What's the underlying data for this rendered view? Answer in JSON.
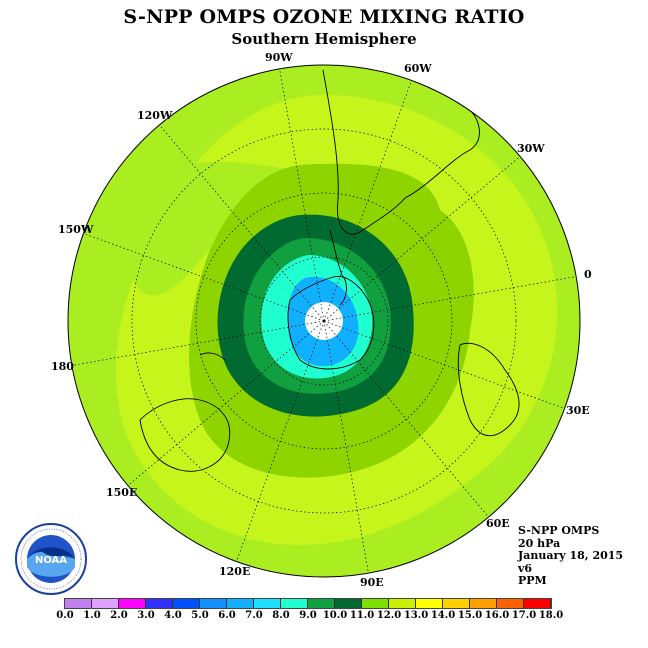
{
  "title": "S-NPP OMPS OZONE MIXING RATIO",
  "subtitle": "Southern Hemisphere",
  "longitude_labels": [
    "90W",
    "60W",
    "30W",
    "0",
    "30E",
    "60E",
    "90E",
    "120E",
    "150E",
    "180",
    "150W",
    "120W"
  ],
  "info": {
    "instrument": "S-NPP OMPS",
    "level": "20 hPa",
    "date": "January 18, 2015",
    "version": "v6",
    "units": "PPM"
  },
  "logo": {
    "text": "NOAA",
    "ring_text": "NATIONAL OCEANIC AND ATMOSPHERIC ADMINISTRATION · U.S. DEPARTMENT OF COMMERCE"
  },
  "colorbar": {
    "ticks": [
      "0.0",
      "1.0",
      "2.0",
      "3.0",
      "4.0",
      "5.0",
      "6.0",
      "7.0",
      "8.0",
      "9.0",
      "10.0",
      "11.0",
      "12.0",
      "13.0",
      "14.0",
      "15.0",
      "16.0",
      "17.0",
      "18.0"
    ],
    "colors": [
      "#c080f0",
      "#e0a0ff",
      "#ff00ff",
      "#3030ff",
      "#0050ff",
      "#1090ff",
      "#10b0ff",
      "#20e0ff",
      "#20ffd0",
      "#10a040",
      "#006a30",
      "#7ce000",
      "#c8f000",
      "#ffff00",
      "#ffd000",
      "#ffa000",
      "#ff6000",
      "#ff0000",
      "#a06040"
    ]
  },
  "map_colors": {
    "outer": "#aaee22",
    "mid": "#c6f51c",
    "band_green": "#8ed400",
    "dark_green": "#006a30",
    "green": "#10a040",
    "teal": "#20ffd0",
    "cyan": "#20e0ff",
    "blue": "#10b0ff",
    "pole": "#ffffff"
  }
}
